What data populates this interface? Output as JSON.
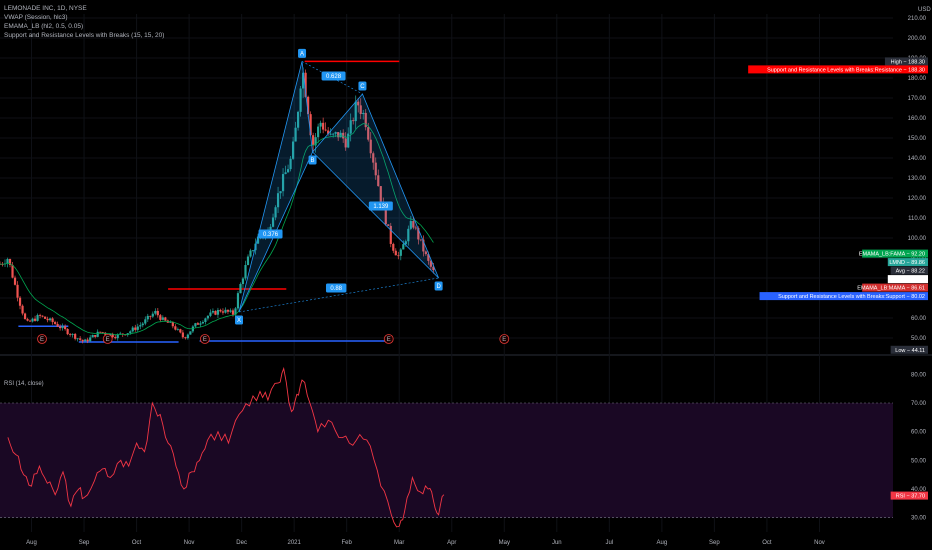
{
  "legend": {
    "title": "LEMONADE INC, 1D, NYSE",
    "vwap": "VWAP (Session, hlc3)",
    "emama": "EMAMA_LB (hl2, 0.5, 0.05)",
    "srlb": "Support and Resistance Levels with Breaks (15, 15, 20)"
  },
  "currency": "USD",
  "rsi_label": "RSI (14, close)",
  "colors": {
    "background": "#000000",
    "up": "#26a69a",
    "down": "#ef5350",
    "resistance": "#ff0000",
    "support": "#2962ff",
    "rsi": "#f23645",
    "pattern": "#2196f3",
    "rsi_band": "#1a0824"
  },
  "chart_data": [
    {
      "type": "candlestick",
      "ylabel": "USD",
      "ylim": [
        44,
        212
      ],
      "y_ticks": [
        "210.00",
        "200.00",
        "190.00",
        "180.00",
        "170.00",
        "160.00",
        "150.00",
        "140.00",
        "130.00",
        "120.00",
        "110.00",
        "100.00",
        "90.00",
        "80.00",
        "70.00",
        "60.00",
        "50.00"
      ],
      "x_ticks": [
        "Aug",
        "Sep",
        "Oct",
        "Nov",
        "Dec",
        "2021",
        "Feb",
        "Mar",
        "Apr",
        "May",
        "Jun",
        "Jul",
        "Aug",
        "Sep",
        "Oct",
        "Nov"
      ],
      "x_ticks_month": [
        1,
        2,
        3,
        4,
        5,
        6,
        7,
        8,
        9,
        10,
        11,
        12,
        13,
        14,
        15,
        16
      ],
      "x_range": [
        0.4,
        17.4
      ],
      "price_anchors": [
        [
          0.4,
          87
        ],
        [
          0.55,
          90
        ],
        [
          0.75,
          70
        ],
        [
          0.9,
          57
        ],
        [
          1.15,
          61
        ],
        [
          1.4,
          58
        ],
        [
          1.75,
          52
        ],
        [
          2.0,
          48
        ],
        [
          2.3,
          53
        ],
        [
          2.6,
          51
        ],
        [
          2.85,
          53
        ],
        [
          3.1,
          57
        ],
        [
          3.35,
          63
        ],
        [
          3.5,
          59
        ],
        [
          3.7,
          56
        ],
        [
          3.9,
          50
        ],
        [
          4.1,
          56
        ],
        [
          4.35,
          61
        ],
        [
          4.6,
          64
        ],
        [
          4.85,
          62
        ],
        [
          4.95,
          74
        ],
        [
          5.1,
          88
        ],
        [
          5.3,
          100
        ],
        [
          5.5,
          103
        ],
        [
          5.65,
          118
        ],
        [
          5.8,
          130
        ],
        [
          5.95,
          140
        ],
        [
          6.05,
          158
        ],
        [
          6.15,
          186
        ],
        [
          6.25,
          168
        ],
        [
          6.35,
          146
        ],
        [
          6.5,
          158
        ],
        [
          6.7,
          150
        ],
        [
          6.85,
          152
        ],
        [
          7.0,
          148
        ],
        [
          7.2,
          168
        ],
        [
          7.35,
          160
        ],
        [
          7.5,
          140
        ],
        [
          7.65,
          120
        ],
        [
          7.85,
          97
        ],
        [
          8.0,
          90
        ],
        [
          8.15,
          102
        ],
        [
          8.25,
          108
        ],
        [
          8.4,
          98
        ],
        [
          8.55,
          88
        ],
        [
          8.65,
          83
        ]
      ],
      "levels": [
        {
          "name": "resistance-top",
          "y": 188.3,
          "x": [
            6.2,
            8.0
          ]
        },
        {
          "name": "resistance-mid",
          "y": 74.5,
          "x": [
            3.6,
            5.85
          ]
        },
        {
          "name": "support-left",
          "y": 55.9,
          "x": [
            0.75,
            1.7
          ]
        },
        {
          "name": "support-bottom-left",
          "y": 48.0,
          "x": [
            1.9,
            3.8
          ]
        },
        {
          "name": "support-bottom-right",
          "y": 48.5,
          "x": [
            4.2,
            7.75
          ]
        }
      ],
      "harmonic_pattern": {
        "points": [
          {
            "label": "X",
            "x": 4.95,
            "y": 63.0
          },
          {
            "label": "A",
            "x": 6.15,
            "y": 188.3
          },
          {
            "label": "B",
            "x": 6.35,
            "y": 143.0
          },
          {
            "label": "C",
            "x": 7.3,
            "y": 172.0
          },
          {
            "label": "D",
            "x": 8.75,
            "y": 80.0
          }
        ],
        "ratios": [
          {
            "label": "0.376",
            "x": 5.55,
            "y": 102
          },
          {
            "label": "0.628",
            "x": 6.75,
            "y": 181
          },
          {
            "label": "1.139",
            "x": 7.65,
            "y": 116
          },
          {
            "label": "0.88",
            "x": 6.8,
            "y": 75
          }
        ]
      },
      "earnings_markers": [
        {
          "label": "E",
          "x": 1.2
        },
        {
          "label": "E",
          "x": 2.45
        },
        {
          "label": "E",
          "x": 4.3
        },
        {
          "label": "E",
          "x": 7.8
        },
        {
          "label": "E",
          "x": 10.0
        }
      ],
      "price_tags": [
        {
          "text": "High − 188.30",
          "value": 188.3,
          "bg": "#2a2e39",
          "fg": "#ffffff"
        },
        {
          "text": "Support and Resistance Levels with Breaks:Resistance − 188.30",
          "value": 188.3,
          "bg": "#ff0000",
          "fg": "#ffffff",
          "offset": 8
        },
        {
          "text": "EMAMA_LB:FAMA − 92.20",
          "value": 92.2,
          "bg": "#00a650",
          "fg": "#ffffff"
        },
        {
          "text": "LMND − 89.86",
          "value": 89.86,
          "bg": "#26a69a",
          "fg": "#ffffff"
        },
        {
          "text": "Avg − 88.22",
          "value": 88.22,
          "bg": "#2a2e39",
          "fg": "#ffffff"
        },
        {
          "text": "VWAP − 86.84",
          "value": 86.84,
          "bg": "#ffffff",
          "fg": "#000000"
        },
        {
          "text": "EMAMA_LB:MAMA − 86.61",
          "value": 86.61,
          "bg": "#d32f2f",
          "fg": "#ffffff"
        },
        {
          "text": "Support and Resistance Levels with Breaks:Support − 80.02",
          "value": 80.02,
          "bg": "#2962ff",
          "fg": "#ffffff"
        },
        {
          "text": "Low − 44.11",
          "value": 44.11,
          "bg": "#2a2e39",
          "fg": "#ffffff"
        }
      ]
    },
    {
      "type": "line",
      "title": "RSI (14, close)",
      "ylim": [
        25,
        85
      ],
      "y_ticks": [
        "80.00",
        "70.00",
        "60.00",
        "50.00",
        "40.00",
        "30.00"
      ],
      "band": [
        30,
        70
      ],
      "current": {
        "text": "RSI − 37.70",
        "value": 37.7
      },
      "rsi_anchors": [
        [
          0.55,
          58
        ],
        [
          0.7,
          52
        ],
        [
          0.85,
          45
        ],
        [
          1.0,
          41
        ],
        [
          1.15,
          48
        ],
        [
          1.3,
          42
        ],
        [
          1.45,
          38
        ],
        [
          1.6,
          46
        ],
        [
          1.75,
          34
        ],
        [
          1.9,
          40
        ],
        [
          2.0,
          37
        ],
        [
          2.2,
          43
        ],
        [
          2.35,
          47
        ],
        [
          2.5,
          44
        ],
        [
          2.7,
          50
        ],
        [
          2.85,
          48
        ],
        [
          3.0,
          56
        ],
        [
          3.15,
          53
        ],
        [
          3.3,
          70
        ],
        [
          3.45,
          66
        ],
        [
          3.6,
          56
        ],
        [
          3.75,
          48
        ],
        [
          3.9,
          40
        ],
        [
          4.05,
          46
        ],
        [
          4.2,
          50
        ],
        [
          4.35,
          57
        ],
        [
          4.55,
          60
        ],
        [
          4.75,
          56
        ],
        [
          4.95,
          66
        ],
        [
          5.15,
          69
        ],
        [
          5.35,
          74
        ],
        [
          5.5,
          71
        ],
        [
          5.7,
          77
        ],
        [
          5.8,
          82
        ],
        [
          5.95,
          67
        ],
        [
          6.05,
          73
        ],
        [
          6.15,
          78
        ],
        [
          6.3,
          70
        ],
        [
          6.45,
          60
        ],
        [
          6.65,
          64
        ],
        [
          6.85,
          58
        ],
        [
          7.05,
          56
        ],
        [
          7.25,
          59
        ],
        [
          7.45,
          55
        ],
        [
          7.65,
          41
        ],
        [
          7.85,
          31
        ],
        [
          8.0,
          27
        ],
        [
          8.1,
          32
        ],
        [
          8.25,
          44
        ],
        [
          8.4,
          39
        ],
        [
          8.55,
          40
        ],
        [
          8.65,
          36
        ],
        [
          8.75,
          31
        ],
        [
          8.85,
          38
        ]
      ]
    }
  ]
}
